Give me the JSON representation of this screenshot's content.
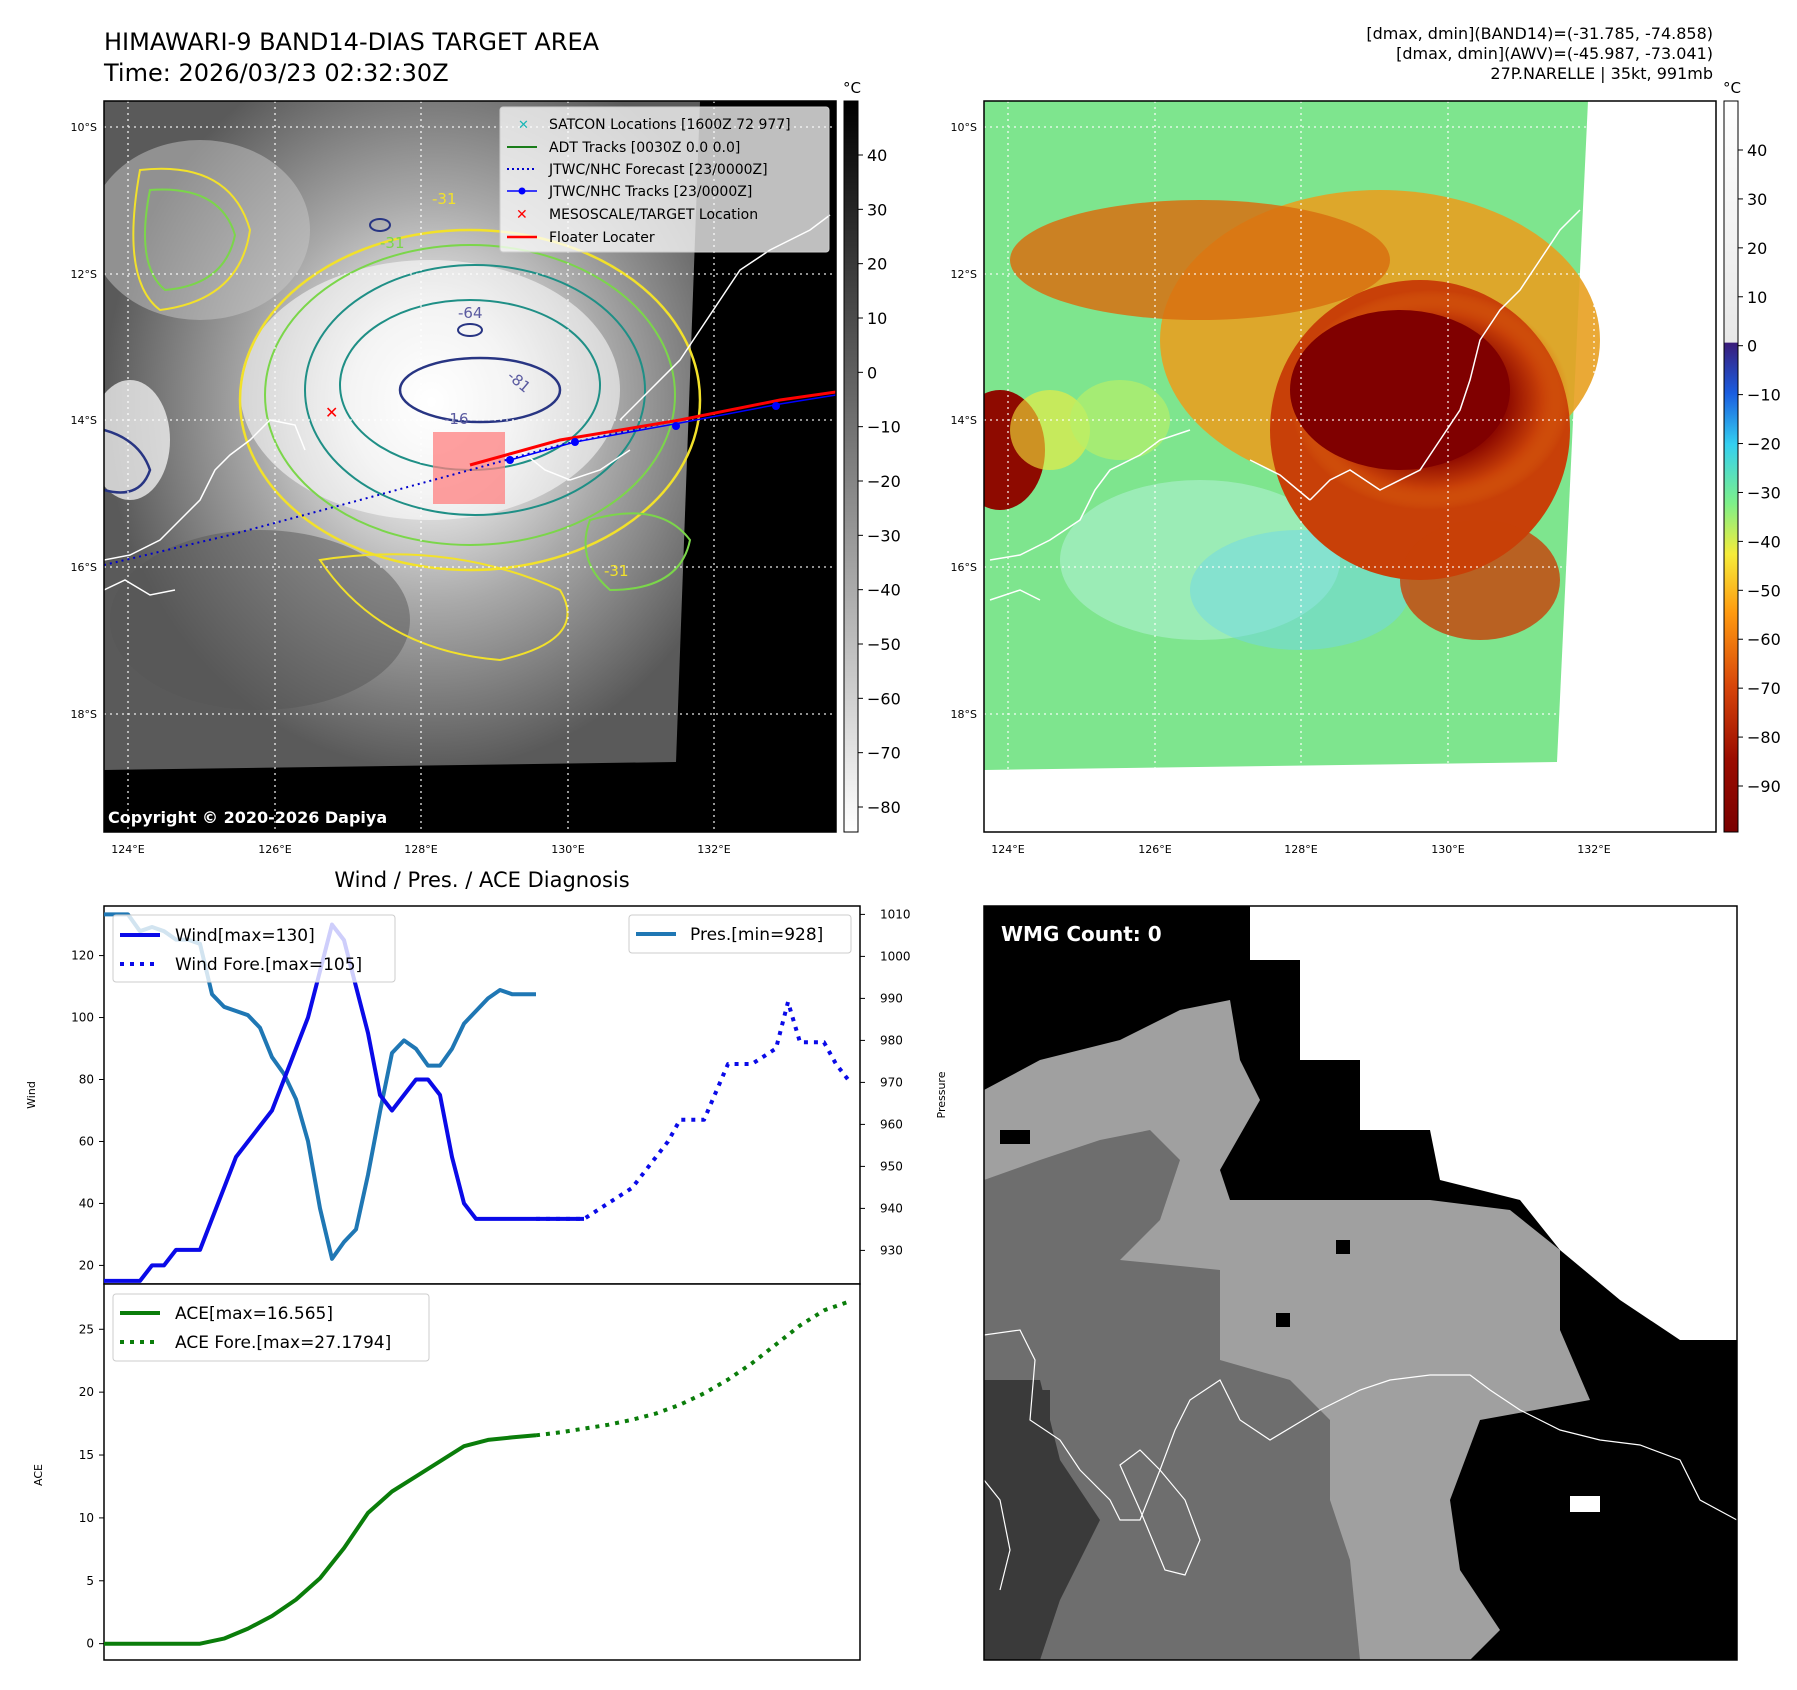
{
  "header": {
    "title_line1": "HIMAWARI-9 BAND14-DIAS TARGET AREA",
    "title_line2": "Time: 2026/03/23 02:32:30Z",
    "info_line1": "[dmax, dmin](BAND14)=(-31.785, -74.858)",
    "info_line2": "[dmax, dmin](AWV)=(-45.987, -73.041)",
    "info_line3": "27P.NARELLE | 35kt, 991mb"
  },
  "map_axes": {
    "lat_labels": [
      "10°S",
      "12°S",
      "14°S",
      "16°S",
      "18°S"
    ],
    "lon_labels": [
      "124°E",
      "126°E",
      "128°E",
      "130°E",
      "132°E"
    ]
  },
  "ir_panel": {
    "colorbar_unit": "°C",
    "colorbar_ticks": [
      "40",
      "30",
      "20",
      "10",
      "0",
      "−10",
      "−20",
      "−30",
      "−40",
      "−50",
      "−60",
      "−70",
      "−80"
    ],
    "contour_labels": [
      "-31",
      "-31",
      "-64",
      "-81",
      "-16",
      "-31"
    ],
    "copyright": "Copyright © 2020-2026 Dapiya",
    "legend": [
      "SATCON Locations [1600Z 72 977]",
      "ADT Tracks [0030Z 0.0 0.0]",
      "JTWC/NHC Forecast [23/0000Z]",
      "JTWC/NHC Tracks [23/0000Z]",
      "MESOSCALE/TARGET Location",
      "Floater Locater"
    ]
  },
  "awv_panel": {
    "colorbar_unit": "°C",
    "colorbar_ticks": [
      "40",
      "30",
      "20",
      "10",
      "0",
      "−10",
      "−20",
      "−30",
      "−40",
      "−50",
      "−60",
      "−70",
      "−80",
      "−90"
    ]
  },
  "wmg_panel": {
    "label": "WMG Count: 0"
  },
  "colors": {
    "wind": "#0a0ae8",
    "pressure": "#1f77b4",
    "ace": "#0a7d0a",
    "track_red": "#ff0000",
    "forecast_blue": "#0000cc"
  },
  "chart_data": [
    {
      "type": "line",
      "title": "Wind / Pres. / ACE Diagnosis",
      "ylabel": "Wind",
      "ylabel_right": "Pressure",
      "ylim": [
        14,
        136
      ],
      "ylim_right": [
        922,
        1012
      ],
      "yticks": [
        20,
        40,
        60,
        80,
        100,
        120
      ],
      "yticks_right": [
        930,
        940,
        950,
        960,
        970,
        980,
        990,
        1000,
        1010
      ],
      "xlim": [
        0,
        63
      ],
      "series": [
        {
          "name": "Wind[max=130]",
          "style": "solid",
          "x": [
            0,
            1,
            2,
            3,
            4,
            5,
            6,
            7,
            8,
            9,
            10,
            11,
            12,
            13,
            14,
            15,
            16,
            17,
            18,
            19,
            20,
            21,
            22,
            23,
            24,
            25,
            26,
            27,
            28,
            29,
            30,
            31,
            32,
            33,
            34,
            35,
            36,
            37,
            38,
            39,
            40
          ],
          "values": [
            15,
            15,
            15,
            15,
            20,
            20,
            25,
            25,
            25,
            35,
            45,
            55,
            60,
            65,
            70,
            80,
            90,
            100,
            115,
            130,
            125,
            110,
            95,
            75,
            70,
            75,
            80,
            80,
            75,
            55,
            40,
            35,
            35,
            35,
            35,
            35,
            35,
            35,
            35,
            35,
            35
          ]
        },
        {
          "name": "Wind Fore.[max=105]",
          "style": "dotted",
          "x": [
            36,
            38,
            40,
            42,
            44,
            45,
            46,
            47,
            48,
            50,
            52,
            54,
            56,
            57,
            58,
            60,
            61,
            62
          ],
          "values": [
            35,
            35,
            35,
            40,
            45,
            50,
            55,
            60,
            67,
            67,
            85,
            85,
            90,
            105,
            92,
            92,
            85,
            80
          ]
        },
        {
          "name": "Pres.[min=928]",
          "style": "solid",
          "x": [
            0,
            2,
            3,
            4,
            5,
            6,
            7,
            8,
            9,
            10,
            11,
            12,
            13,
            14,
            15,
            16,
            17,
            18,
            19,
            20,
            21,
            22,
            23,
            24,
            25,
            26,
            27,
            28,
            29,
            30,
            31,
            32,
            33,
            34,
            35,
            36
          ],
          "values": [
            1010,
            1010,
            1006,
            1007,
            1006,
            1004,
            1004,
            1003,
            991,
            988,
            987,
            986,
            983,
            976,
            972,
            966,
            956,
            940,
            928,
            932,
            935,
            948,
            963,
            977,
            980,
            978,
            974,
            974,
            978,
            984,
            987,
            990,
            992,
            991,
            991,
            991
          ]
        },
        {
          "name": "ACE[max=16.565]",
          "style": "solid",
          "ylabel": "ACE",
          "ylim": [
            -1.3,
            28.6
          ],
          "yticks": [
            0,
            5,
            10,
            15,
            20,
            25
          ],
          "x": [
            0,
            2,
            4,
            6,
            8,
            10,
            12,
            14,
            16,
            18,
            20,
            22,
            24,
            26,
            28,
            30,
            32,
            34,
            36
          ],
          "values": [
            0,
            0,
            0,
            0,
            0,
            0.4,
            1.2,
            2.2,
            3.5,
            5.2,
            7.6,
            10.4,
            12.1,
            13.3,
            14.5,
            15.7,
            16.2,
            16.4,
            16.565
          ]
        },
        {
          "name": "ACE Fore.[max=27.1794]",
          "style": "dotted",
          "x": [
            36,
            38,
            40,
            42,
            44,
            46,
            48,
            50,
            52,
            54,
            56,
            58,
            60,
            62
          ],
          "values": [
            16.565,
            16.8,
            17.1,
            17.4,
            17.8,
            18.3,
            19.0,
            19.9,
            21.0,
            22.3,
            23.8,
            25.3,
            26.5,
            27.1794
          ]
        }
      ]
    }
  ]
}
